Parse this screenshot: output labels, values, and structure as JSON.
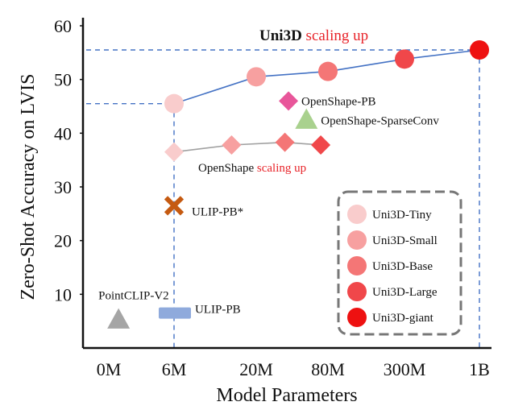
{
  "chart_data": {
    "type": "scatter",
    "title": {
      "bold": "Uni3D",
      "red": "scaling up"
    },
    "xlabel": "Model Parameters",
    "ylabel": "Zero-Shot Accuracy on LVIS",
    "x_categories": [
      "0M",
      "6M",
      "20M",
      "80M",
      "300M",
      "1B"
    ],
    "y_ticks": [
      10,
      20,
      30,
      40,
      50,
      60
    ],
    "ylim": [
      0,
      61
    ],
    "colors": {
      "uni3d_line": "#4472c4",
      "openshape_line": "#a0a0a0",
      "tiny": "#f9cccc",
      "small": "#f7a0a0",
      "base": "#f47676",
      "large": "#f0474a",
      "giant": "#ee1111",
      "openshape_pb": "#e8569a",
      "sparseconv": "#a9d18e",
      "ulip_pb_star": "#c55a11",
      "ulip_pb": "#8faadc",
      "pointclip": "#a5a5a5"
    },
    "uni3d_series": {
      "name": "Uni3D",
      "points": [
        {
          "x": 1.0,
          "y": 45.5,
          "size": "tiny"
        },
        {
          "x": 2.0,
          "y": 50.5,
          "size": "small"
        },
        {
          "x": 3.0,
          "y": 51.5,
          "size": "base"
        },
        {
          "x": 4.0,
          "y": 53.8,
          "size": "large"
        },
        {
          "x": 5.0,
          "y": 55.5,
          "size": "giant"
        }
      ]
    },
    "openshape_series": {
      "name": "OpenShape",
      "label": "OpenShape",
      "label_red": "scaling up",
      "points": [
        {
          "x": 1.0,
          "y": 36.5,
          "shade": "#f9cccc"
        },
        {
          "x": 1.7,
          "y": 37.8,
          "shade": "#f7a0a0"
        },
        {
          "x": 2.4,
          "y": 38.3,
          "shade": "#f47676"
        },
        {
          "x": 2.9,
          "y": 37.8,
          "shade": "#f0474a"
        }
      ]
    },
    "baselines": [
      {
        "name": "OpenShape-PB",
        "x": 2.45,
        "y": 46.0,
        "marker": "diamond"
      },
      {
        "name": "OpenShape-SparseConv",
        "x": 2.7,
        "y": 42.5,
        "marker": "triangle"
      },
      {
        "name": "ULIP-PB*",
        "x": 1.0,
        "y": 26.5,
        "marker": "x"
      },
      {
        "name": "ULIP-PB",
        "x": 1.0,
        "y": 6.5,
        "marker": "bar"
      },
      {
        "name": "PointCLIP-V2",
        "x": 0.15,
        "y": 5.3,
        "marker": "triangle"
      }
    ],
    "legend": {
      "position": "bottom-right",
      "entries": [
        {
          "label": "Uni3D-Tiny",
          "size": "tiny"
        },
        {
          "label": "Uni3D-Small",
          "size": "small"
        },
        {
          "label": "Uni3D-Base",
          "size": "base"
        },
        {
          "label": "Uni3D-Large",
          "size": "large"
        },
        {
          "label": "Uni3D-giant",
          "size": "giant"
        }
      ]
    }
  }
}
